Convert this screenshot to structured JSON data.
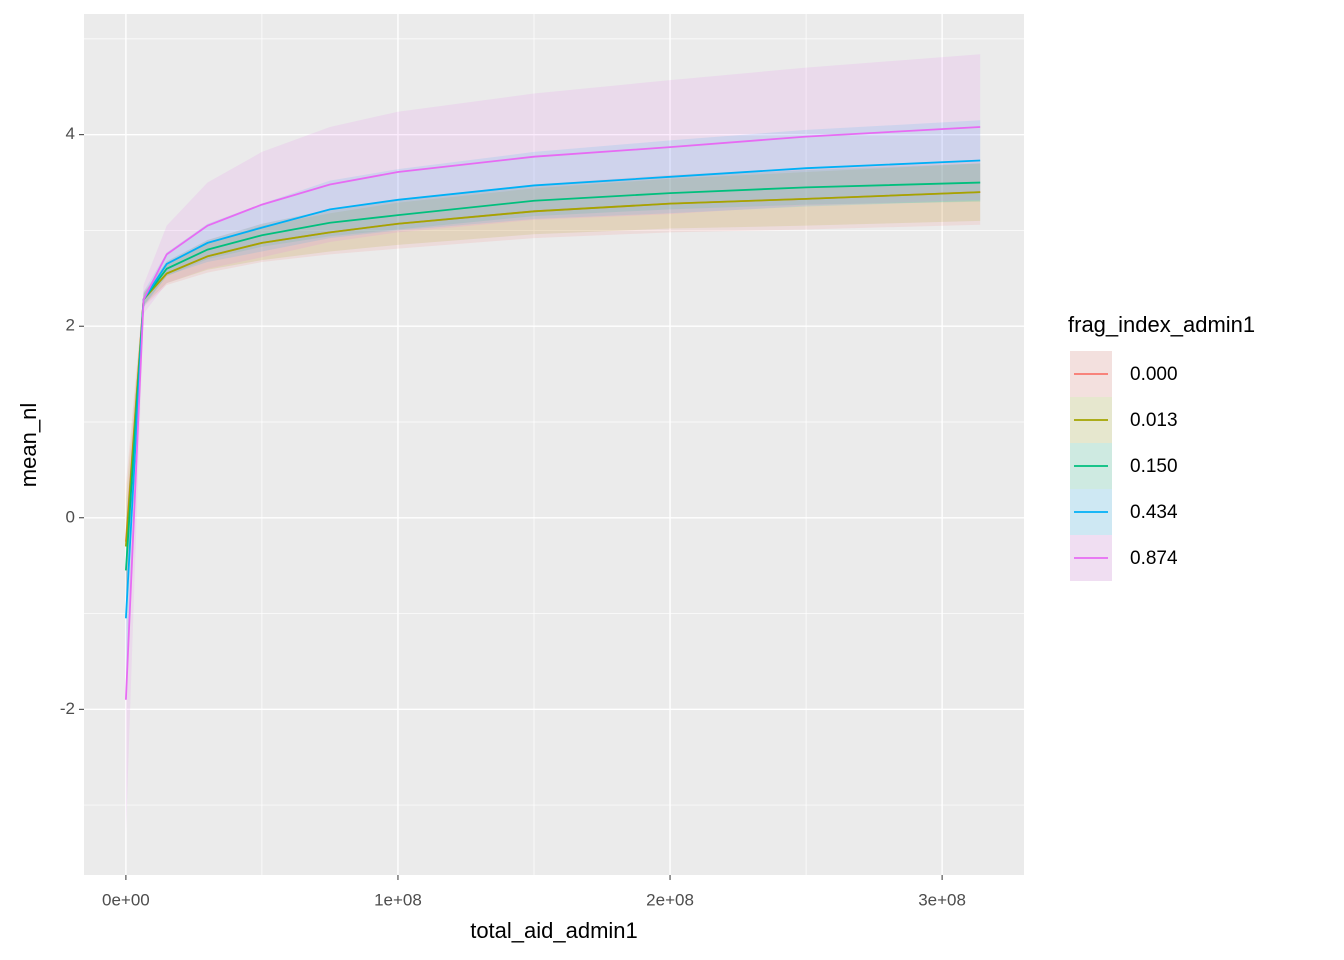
{
  "chart_data": {
    "type": "line",
    "x_label": "total_aid_admin1",
    "y_label": "mean_nl",
    "legend_title": "frag_index_admin1",
    "legend_position": "right",
    "grid": true,
    "x": [
      0,
      6500000,
      15000000,
      30000000,
      50000000,
      75000000,
      100000000,
      150000000,
      200000000,
      250000000,
      314000000
    ],
    "xlim": [
      -15400000,
      330100000
    ],
    "xticks": [
      {
        "value": 0,
        "label": "0e+00"
      },
      {
        "value": 100000000,
        "label": "1e+08"
      },
      {
        "value": 200000000,
        "label": "2e+08"
      },
      {
        "value": 300000000,
        "label": "3e+08"
      }
    ],
    "ylim": [
      -3.73,
      5.26
    ],
    "yticks": [
      -2,
      0,
      2,
      4
    ],
    "series": [
      {
        "name": "0.000",
        "color": "#F8766D",
        "values": [
          -0.25,
          2.28,
          2.55,
          2.73,
          2.87,
          2.98,
          3.07,
          3.2,
          3.28,
          3.33,
          3.4
        ],
        "lower": [
          -0.85,
          2.2,
          2.43,
          2.56,
          2.67,
          2.75,
          2.81,
          2.92,
          2.98,
          3.01,
          3.06
        ],
        "upper": [
          0.35,
          2.36,
          2.67,
          2.9,
          3.07,
          3.21,
          3.33,
          3.48,
          3.58,
          3.65,
          3.74
        ]
      },
      {
        "name": "0.013",
        "color": "#A3A500",
        "values": [
          -0.3,
          2.28,
          2.55,
          2.73,
          2.87,
          2.98,
          3.07,
          3.2,
          3.28,
          3.33,
          3.4
        ],
        "lower": [
          -0.8,
          2.22,
          2.45,
          2.59,
          2.69,
          2.78,
          2.85,
          2.96,
          3.02,
          3.05,
          3.1
        ],
        "upper": [
          0.2,
          2.34,
          2.65,
          2.87,
          3.05,
          3.18,
          3.29,
          3.44,
          3.54,
          3.61,
          3.7
        ]
      },
      {
        "name": "0.150",
        "color": "#00BF7D",
        "values": [
          -0.55,
          2.28,
          2.6,
          2.8,
          2.95,
          3.08,
          3.16,
          3.31,
          3.39,
          3.45,
          3.5
        ],
        "lower": [
          -1.05,
          2.22,
          2.52,
          2.7,
          2.83,
          2.94,
          3.01,
          3.15,
          3.22,
          3.27,
          3.3
        ],
        "upper": [
          -0.05,
          2.34,
          2.68,
          2.9,
          3.07,
          3.22,
          3.31,
          3.47,
          3.56,
          3.63,
          3.7
        ]
      },
      {
        "name": "0.434",
        "color": "#00B0F6",
        "values": [
          -1.05,
          2.28,
          2.65,
          2.87,
          3.03,
          3.22,
          3.32,
          3.47,
          3.56,
          3.65,
          3.73
        ],
        "lower": [
          -1.75,
          2.2,
          2.53,
          2.67,
          2.78,
          2.92,
          3.0,
          3.12,
          3.18,
          3.25,
          3.31
        ],
        "upper": [
          -0.35,
          2.36,
          2.77,
          3.07,
          3.28,
          3.52,
          3.64,
          3.82,
          3.94,
          4.05,
          4.15
        ]
      },
      {
        "name": "0.874",
        "color": "#E76BF3",
        "values": [
          -1.9,
          2.28,
          2.75,
          3.05,
          3.27,
          3.48,
          3.61,
          3.77,
          3.87,
          3.98,
          4.08
        ],
        "lower": [
          -3.3,
          2.13,
          2.45,
          2.6,
          2.72,
          2.88,
          2.98,
          3.11,
          3.17,
          3.26,
          3.32
        ],
        "upper": [
          -0.5,
          2.43,
          3.05,
          3.5,
          3.82,
          4.08,
          4.24,
          4.43,
          4.57,
          4.7,
          4.84
        ]
      }
    ]
  }
}
